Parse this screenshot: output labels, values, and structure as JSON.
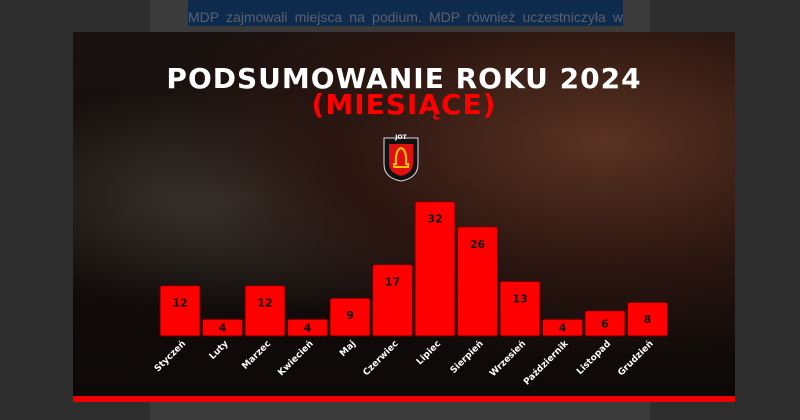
{
  "article": {
    "visible_line": "MDP zajmowali miejsca na podium. MDP również uczestniczyła w"
  },
  "graphic": {
    "title": "PODSUMOWANIE ROKU 2024",
    "subtitle": "(MIESIĄCE)",
    "emblem_text": "JOT",
    "colors": {
      "bar": "#ff0000",
      "title": "#ffffff",
      "subtitle": "#ff0000",
      "accent_bar": "#e00000"
    }
  },
  "chart_data": {
    "type": "bar",
    "title": "PODSUMOWANIE ROKU 2024 (MIESIĄCE)",
    "categories": [
      "Styczeń",
      "Luty",
      "Marzec",
      "Kwiecień",
      "Maj",
      "Czerwiec",
      "Lipiec",
      "Sierpień",
      "Wrzesień",
      "Październik",
      "Listopad",
      "Grudzień"
    ],
    "values": [
      12,
      4,
      12,
      4,
      9,
      17,
      32,
      26,
      13,
      4,
      6,
      8
    ],
    "data_labels": true,
    "grid": false
  }
}
